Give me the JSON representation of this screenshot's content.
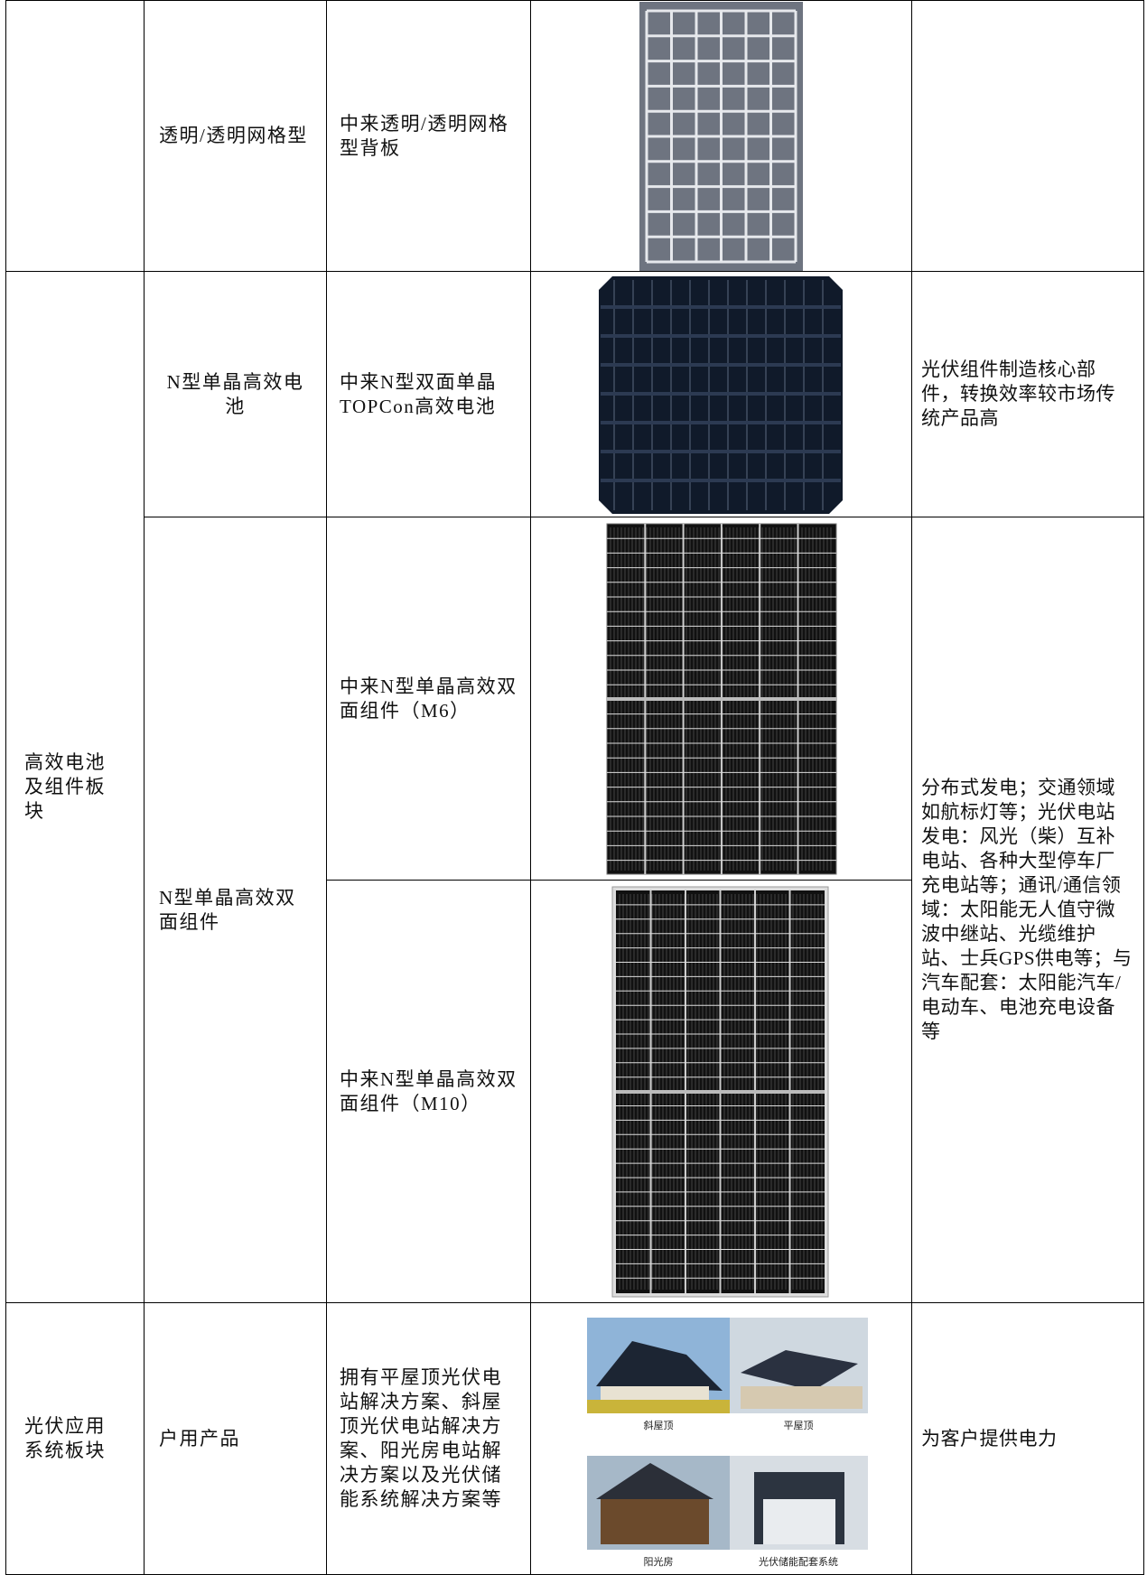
{
  "table": {
    "rows": [
      {
        "product": "透明/透明网格型",
        "name": "中来透明/透明网格型背板"
      },
      {
        "segment": "高效电池及组件板块",
        "product": "N型单晶高效电池",
        "name": "中来N型双面单晶TOPCon高效电池",
        "application": "光伏组件制造核心部件，转换效率较市场传统产品高"
      },
      {
        "product": "N型单晶高效双面组件",
        "name": "中来N型单晶高效双面组件（M6）",
        "application": "分布式发电；交通领域如航标灯等；光伏电站发电：风光（柴）互补电站、各种大型停车厂充电站等；通讯/通信领域：太阳能无人值守微波中继站、光缆维护站、士兵GPS供电等；与汽车配套：太阳能汽车/电动车、电池充电设备等"
      },
      {
        "name": "中来N型单晶高效双面组件（M10）"
      },
      {
        "segment": "光伏应用系统板块",
        "product": "户用产品",
        "name": "拥有平屋顶光伏电站解决方案、斜屋顶光伏电站解决方案、阳光房电站解决方案以及光伏储能系统解决方案等",
        "image_captions": [
          "斜屋顶",
          "平屋顶",
          "阳光房",
          "光伏储能配套系统"
        ],
        "application": "为客户提供电力"
      }
    ]
  }
}
